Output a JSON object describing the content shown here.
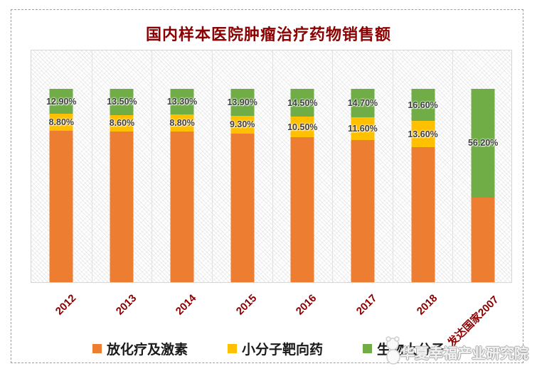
{
  "title": "国内样本医院肿瘤治疗药物销售额",
  "watermark": "华夏幸福产业研究院",
  "colors": {
    "title_red": "#8B0000",
    "axis_label_red": "#8B0000",
    "data_label_gray": "#3F3F3F",
    "orange": "#ED7D31",
    "yellow": "#FFC000",
    "green": "#70AD47"
  },
  "legend": {
    "items": [
      {
        "label": "放化疗及激素",
        "color": "#ED7D31"
      },
      {
        "label": "小分子靶向药",
        "color": "#FFC000"
      },
      {
        "label": "生物大分子",
        "color": "#70AD47"
      }
    ]
  },
  "chart_data": {
    "type": "bar",
    "variant": "100%-stacked-column",
    "title": "国内样本医院肿瘤治疗药物销售额",
    "categories": [
      "2012",
      "2013",
      "2014",
      "2015",
      "2016",
      "2017",
      "2018",
      "发达国家2007"
    ],
    "series": [
      {
        "name": "放化疗及激素",
        "color": "#ED7D31",
        "values": [
          78.3,
          77.9,
          77.9,
          76.8,
          75.0,
          73.7,
          69.8,
          43.8
        ],
        "labels": [
          "",
          "",
          "",
          "",
          "",
          "",
          "",
          ""
        ]
      },
      {
        "name": "小分子靶向药",
        "color": "#FFC000",
        "values": [
          8.8,
          8.6,
          8.8,
          9.3,
          10.5,
          11.6,
          13.6,
          0
        ],
        "labels": [
          "8.80%",
          "8.60%",
          "8.80%",
          "9.30%",
          "10.50%",
          "11.60%",
          "13.60%",
          ""
        ]
      },
      {
        "name": "生物大分子",
        "color": "#70AD47",
        "values": [
          12.9,
          13.5,
          13.3,
          13.9,
          14.5,
          14.7,
          16.6,
          56.2
        ],
        "labels": [
          "12.90%",
          "13.50%",
          "13.30%",
          "13.90%",
          "14.50%",
          "14.70%",
          "16.60%",
          "56.20%"
        ]
      }
    ],
    "ylim": [
      0,
      120
    ],
    "grid": false,
    "legend_position": "bottom"
  }
}
